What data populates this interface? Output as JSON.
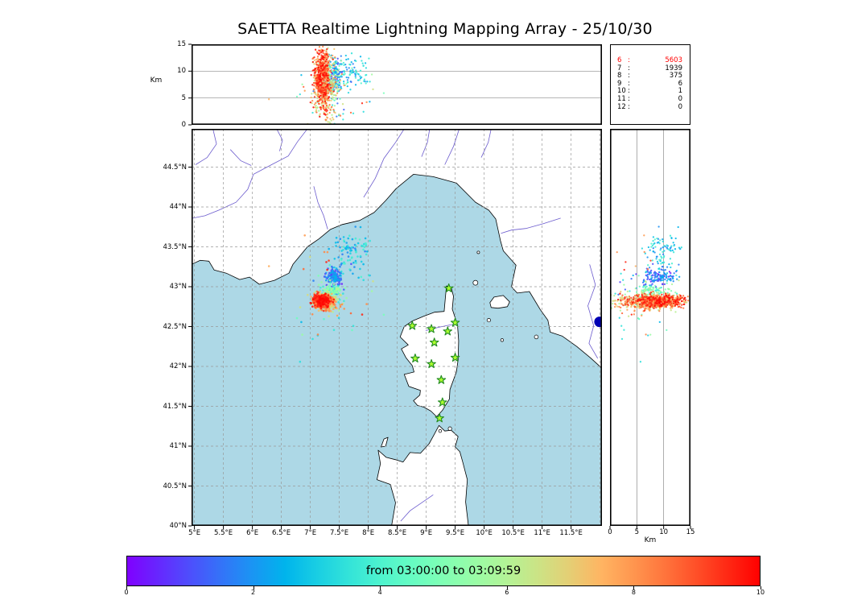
{
  "title": "SAETTA Realtime Lightning Mapping Array - 25/10/30",
  "colors": {
    "sea": "#add8e6",
    "land": "#ffffff",
    "coast": "#000000",
    "river": "#6a5acd",
    "grid": "#999999",
    "panel_grid": "#8a8a8a",
    "star_fill": "#adff2f",
    "star_stroke": "#228b22",
    "highlight": "#ff0000",
    "offshore_marker": "#0000b4"
  },
  "axes": {
    "map": {
      "lon_min": 4.95,
      "lon_max": 12.033,
      "lat_min": 40.0,
      "lat_max": 44.98,
      "grid_step": 0.5,
      "lon_tick_values": [
        5,
        5.5,
        6,
        6.5,
        7,
        7.5,
        8,
        8.5,
        9,
        9.5,
        10,
        10.5,
        11,
        11.5
      ],
      "lon_tick_labels": [
        "5°E",
        "5.5°E",
        "6°E",
        "6.5°E",
        "7°E",
        "7.5°E",
        "8°E",
        "8.5°E",
        "9°E",
        "9.5°E",
        "10°E",
        "10.5°E",
        "11°E",
        "11.5°E"
      ],
      "lat_tick_values": [
        44.5,
        44,
        43.5,
        43,
        42.5,
        42,
        41.5,
        41,
        40.5,
        40
      ],
      "lat_tick_labels": [
        "44.5°N",
        "44°N",
        "43.5°N",
        "43°N",
        "42.5°N",
        "42°N",
        "41.5°N",
        "41°N",
        "40.5°N",
        "40°N"
      ]
    },
    "alt": {
      "label": "Km",
      "min": 0,
      "max": 15,
      "ticks": [
        0,
        5,
        10,
        15
      ],
      "grid_ticks": [
        5,
        10
      ]
    }
  },
  "counts_panel": {
    "rows": [
      {
        "label": "6",
        "value": "5603",
        "highlight": true
      },
      {
        "label": "7",
        "value": "1939",
        "highlight": false
      },
      {
        "label": "8",
        "value": "375",
        "highlight": false
      },
      {
        "label": "9",
        "value": "6",
        "highlight": false
      },
      {
        "label": "10",
        "value": "1",
        "highlight": false
      },
      {
        "label": "11",
        "value": "0",
        "highlight": false
      },
      {
        "label": "12",
        "value": "0",
        "highlight": false
      }
    ]
  },
  "colorbar": {
    "label": "from 03:00:00 to 03:09:59",
    "tick_values": [
      0,
      2,
      4,
      6,
      8,
      10
    ],
    "vmin": 0,
    "vmax": 10,
    "colormap": "rainbow"
  },
  "chart_data": {
    "type": "scatter",
    "description": "Lightning VHF sources colored by time over a 10-minute window, shown in three linked projections: altitude-longitude (top), map plan view (center), altitude-latitude (right).",
    "stations_lonlat": [
      [
        9.39,
        42.98
      ],
      [
        8.76,
        42.51
      ],
      [
        9.09,
        42.47
      ],
      [
        9.37,
        42.44
      ],
      [
        9.5,
        42.55
      ],
      [
        9.14,
        42.3
      ],
      [
        8.81,
        42.1
      ],
      [
        9.5,
        42.11
      ],
      [
        9.09,
        42.03
      ],
      [
        9.26,
        41.83
      ],
      [
        9.28,
        41.55
      ],
      [
        9.23,
        41.35
      ]
    ],
    "offshore_marker": {
      "lon": 11.99,
      "lat": 42.56,
      "radius_px": 6.5
    },
    "clusters": [
      {
        "name": "storm-core-late",
        "n": 620,
        "lon_mu": 7.2,
        "lon_sigma": 0.07,
        "lat_mu": 42.82,
        "lat_sigma": 0.042,
        "alt_mu": 8.8,
        "alt_sigma": 2.6,
        "t_min": 0.7,
        "t_max": 1.0
      },
      {
        "name": "storm-core-mid",
        "n": 230,
        "lon_mu": 7.27,
        "lon_sigma": 0.11,
        "lat_mu": 42.8,
        "lat_sigma": 0.055,
        "alt_mu": 6.2,
        "alt_sigma": 3.1,
        "t_min": 0.58,
        "t_max": 0.86
      },
      {
        "name": "green-mid-band",
        "n": 120,
        "lon_mu": 7.36,
        "lon_sigma": 0.1,
        "lat_mu": 42.93,
        "lat_sigma": 0.06,
        "alt_mu": 8.0,
        "alt_sigma": 2.2,
        "t_min": 0.34,
        "t_max": 0.62
      },
      {
        "name": "blue-early-blob",
        "n": 130,
        "lon_mu": 7.4,
        "lon_sigma": 0.06,
        "lat_mu": 43.12,
        "lat_sigma": 0.05,
        "alt_mu": 9.2,
        "alt_sigma": 1.6,
        "t_min": 0.03,
        "t_max": 0.26
      },
      {
        "name": "cyan-north-trail",
        "n": 95,
        "lon_mu": 7.7,
        "lon_sigma": 0.16,
        "lat_mu": 43.42,
        "lat_sigma": 0.14,
        "alt_mu": 9.6,
        "alt_sigma": 1.5,
        "t_min": 0.16,
        "t_max": 0.42
      },
      {
        "name": "sparse-noise",
        "n": 50,
        "lon_mu": 7.45,
        "lon_sigma": 0.4,
        "lat_mu": 42.95,
        "lat_sigma": 0.33,
        "alt_mu": 4.5,
        "alt_sigma": 2.6,
        "t_min": 0.0,
        "t_max": 1.0
      }
    ],
    "geo": {
      "mainland": [
        [
          4.95,
          43.28
        ],
        [
          5.1,
          43.33
        ],
        [
          5.25,
          43.32
        ],
        [
          5.34,
          43.21
        ],
        [
          5.55,
          43.17
        ],
        [
          5.78,
          43.09
        ],
        [
          5.95,
          43.12
        ],
        [
          6.12,
          43.03
        ],
        [
          6.38,
          43.08
        ],
        [
          6.63,
          43.17
        ],
        [
          6.7,
          43.28
        ],
        [
          6.95,
          43.5
        ],
        [
          7.15,
          43.6
        ],
        [
          7.35,
          43.72
        ],
        [
          7.55,
          43.78
        ],
        [
          7.85,
          43.83
        ],
        [
          8.1,
          43.93
        ],
        [
          8.3,
          44.08
        ],
        [
          8.48,
          44.23
        ],
        [
          8.78,
          44.41
        ],
        [
          9.12,
          44.38
        ],
        [
          9.52,
          44.3
        ],
        [
          9.85,
          44.06
        ],
        [
          10.08,
          43.96
        ],
        [
          10.2,
          43.85
        ],
        [
          10.28,
          43.58
        ],
        [
          10.33,
          43.45
        ],
        [
          10.55,
          43.27
        ],
        [
          10.47,
          43.0
        ],
        [
          10.57,
          42.92
        ],
        [
          10.78,
          42.94
        ],
        [
          10.97,
          42.71
        ],
        [
          11.1,
          42.58
        ],
        [
          11.14,
          42.43
        ],
        [
          11.35,
          42.38
        ],
        [
          11.6,
          42.25
        ],
        [
          11.83,
          42.11
        ],
        [
          12.06,
          41.96
        ],
        [
          12.06,
          45.0
        ],
        [
          4.93,
          45.0
        ]
      ],
      "corsica": [
        [
          9.35,
          43.01
        ],
        [
          9.43,
          42.99
        ],
        [
          9.47,
          42.88
        ],
        [
          9.45,
          42.72
        ],
        [
          9.49,
          42.63
        ],
        [
          9.54,
          42.52
        ],
        [
          9.56,
          42.32
        ],
        [
          9.55,
          42.08
        ],
        [
          9.52,
          41.93
        ],
        [
          9.41,
          41.71
        ],
        [
          9.4,
          41.59
        ],
        [
          9.28,
          41.45
        ],
        [
          9.18,
          41.37
        ],
        [
          9.08,
          41.44
        ],
        [
          8.96,
          41.49
        ],
        [
          8.85,
          41.51
        ],
        [
          8.78,
          41.57
        ],
        [
          8.89,
          41.64
        ],
        [
          8.9,
          41.7
        ],
        [
          8.7,
          41.75
        ],
        [
          8.62,
          41.9
        ],
        [
          8.79,
          41.93
        ],
        [
          8.76,
          42.01
        ],
        [
          8.65,
          42.11
        ],
        [
          8.57,
          42.22
        ],
        [
          8.69,
          42.27
        ],
        [
          8.55,
          42.37
        ],
        [
          8.62,
          42.5
        ],
        [
          8.76,
          42.57
        ],
        [
          8.96,
          42.63
        ],
        [
          9.14,
          42.68
        ],
        [
          9.31,
          42.69
        ],
        [
          9.33,
          42.86
        ]
      ],
      "sardinia": [
        [
          8.4,
          39.99
        ],
        [
          8.47,
          40.29
        ],
        [
          8.38,
          40.52
        ],
        [
          8.15,
          40.58
        ],
        [
          8.21,
          40.78
        ],
        [
          8.17,
          40.95
        ],
        [
          8.31,
          40.86
        ],
        [
          8.47,
          40.83
        ],
        [
          8.6,
          40.8
        ],
        [
          8.72,
          40.92
        ],
        [
          8.9,
          40.91
        ],
        [
          9.05,
          41.03
        ],
        [
          9.14,
          41.15
        ],
        [
          9.22,
          41.26
        ],
        [
          9.32,
          41.19
        ],
        [
          9.43,
          41.2
        ],
        [
          9.55,
          41.12
        ],
        [
          9.5,
          40.99
        ],
        [
          9.58,
          40.93
        ],
        [
          9.63,
          40.8
        ],
        [
          9.71,
          40.58
        ],
        [
          9.68,
          40.3
        ],
        [
          9.73,
          39.99
        ]
      ],
      "islands": [
        [
          [
            10.1,
            42.8
          ],
          [
            10.17,
            42.87
          ],
          [
            10.33,
            42.89
          ],
          [
            10.44,
            42.81
          ],
          [
            10.4,
            42.75
          ],
          [
            10.24,
            42.73
          ],
          [
            10.12,
            42.74
          ]
        ],
        [
          [
            8.22,
            40.99
          ],
          [
            8.27,
            41.09
          ],
          [
            8.34,
            41.11
          ],
          [
            8.3,
            41.0
          ]
        ]
      ],
      "island_dots": [
        [
          9.85,
          43.05,
          3
        ],
        [
          9.9,
          43.43,
          1.6
        ],
        [
          10.08,
          42.58,
          2.2
        ],
        [
          10.31,
          42.33,
          1.8
        ],
        [
          10.9,
          42.37,
          2.4
        ],
        [
          9.41,
          41.22,
          2.2
        ],
        [
          9.24,
          41.19,
          1.8
        ]
      ],
      "rivers": [
        [
          [
            6.95,
            44.98
          ],
          [
            6.78,
            44.82
          ],
          [
            6.62,
            44.64
          ],
          [
            6.33,
            44.53
          ],
          [
            6.02,
            44.41
          ],
          [
            5.92,
            44.22
          ],
          [
            5.72,
            44.06
          ],
          [
            5.42,
            43.96
          ],
          [
            5.18,
            43.89
          ],
          [
            4.97,
            43.86
          ]
        ],
        [
          [
            5.32,
            44.98
          ],
          [
            5.38,
            44.79
          ],
          [
            5.22,
            44.62
          ],
          [
            5.02,
            44.53
          ]
        ],
        [
          [
            6.42,
            44.98
          ],
          [
            6.52,
            44.84
          ],
          [
            6.47,
            44.7
          ]
        ],
        [
          [
            5.62,
            44.72
          ],
          [
            5.8,
            44.58
          ],
          [
            5.98,
            44.52
          ]
        ],
        [
          [
            7.06,
            44.26
          ],
          [
            7.13,
            44.06
          ],
          [
            7.23,
            43.89
          ],
          [
            7.3,
            43.72
          ]
        ],
        [
          [
            7.92,
            44.12
          ],
          [
            8.12,
            44.36
          ],
          [
            8.27,
            44.61
          ],
          [
            8.47,
            44.81
          ],
          [
            8.62,
            44.98
          ]
        ],
        [
          [
            8.92,
            44.63
          ],
          [
            9.02,
            44.81
          ],
          [
            9.06,
            44.98
          ]
        ],
        [
          [
            9.32,
            44.53
          ],
          [
            9.47,
            44.76
          ],
          [
            9.57,
            44.98
          ]
        ],
        [
          [
            9.95,
            44.62
          ],
          [
            10.07,
            44.81
          ],
          [
            10.12,
            44.98
          ]
        ],
        [
          [
            11.32,
            43.86
          ],
          [
            11.02,
            43.79
          ],
          [
            10.72,
            43.73
          ],
          [
            10.47,
            43.71
          ],
          [
            10.29,
            43.67
          ]
        ],
        [
          [
            11.82,
            43.28
          ],
          [
            11.92,
            43.02
          ],
          [
            11.79,
            42.76
          ],
          [
            11.89,
            42.51
          ],
          [
            11.81,
            42.29
          ],
          [
            11.96,
            42.1
          ]
        ],
        [
          [
            9.12,
            40.39
          ],
          [
            8.92,
            40.29
          ],
          [
            8.72,
            40.19
          ],
          [
            8.56,
            40.06
          ]
        ],
        [
          [
            8.99,
            42.45
          ],
          [
            9.21,
            42.49
          ],
          [
            9.41,
            42.52
          ],
          [
            9.55,
            42.53
          ]
        ]
      ]
    }
  }
}
